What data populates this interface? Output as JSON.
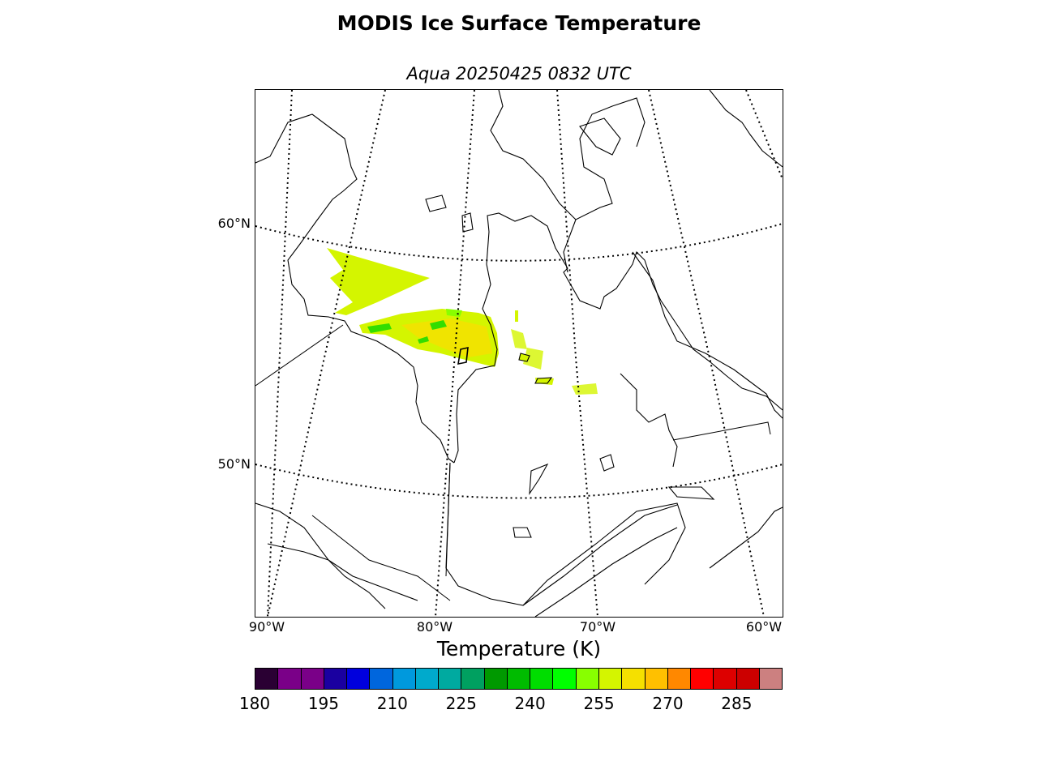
{
  "title": "MODIS Ice Surface Temperature",
  "subtitle": "Aqua 20250425 0832 UTC",
  "map": {
    "lat_labels": [
      "60°N",
      "50°N"
    ],
    "lon_labels": [
      "90°W",
      "80°W",
      "70°W",
      "60°W"
    ],
    "land_color": "#ffffff",
    "coast_color": "#000000",
    "data_colors": {
      "main": "#d4f500",
      "warm": "#f5e000",
      "green": "#33dd00",
      "lime": "#88ff00"
    }
  },
  "colorbar": {
    "label": "Temperature (K)",
    "min": 180,
    "max": 295,
    "step": 5,
    "ticks": [
      "180",
      "195",
      "210",
      "225",
      "240",
      "255",
      "270",
      "285"
    ],
    "colors": [
      "#2a0033",
      "#7a0088",
      "#7a0088",
      "#1a00a0",
      "#0000dd",
      "#0066dd",
      "#0099dd",
      "#00aacc",
      "#00aaa0",
      "#00a060",
      "#009900",
      "#00bb00",
      "#00dd00",
      "#00ff00",
      "#88ff00",
      "#d4f500",
      "#f5e000",
      "#ffc000",
      "#ff8800",
      "#ff0000",
      "#dd0000",
      "#cc0000",
      "#cc8080"
    ]
  }
}
